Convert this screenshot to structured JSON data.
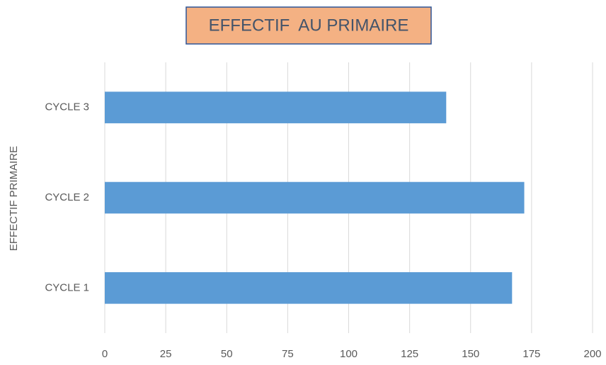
{
  "chart_data": {
    "type": "bar",
    "orientation": "horizontal",
    "title": "EFFECTIF  AU PRIMAIRE",
    "y_label": "EFFECTIF PRIMAIRE",
    "categories": [
      "CYCLE 1",
      "CYCLE 2",
      "CYCLE 3"
    ],
    "values": [
      167,
      172,
      140
    ],
    "color": "#5b9bd5",
    "xlim": [
      0,
      200
    ],
    "xticks": [
      0,
      25,
      50,
      75,
      100,
      125,
      150,
      175,
      200
    ],
    "grid": true
  }
}
